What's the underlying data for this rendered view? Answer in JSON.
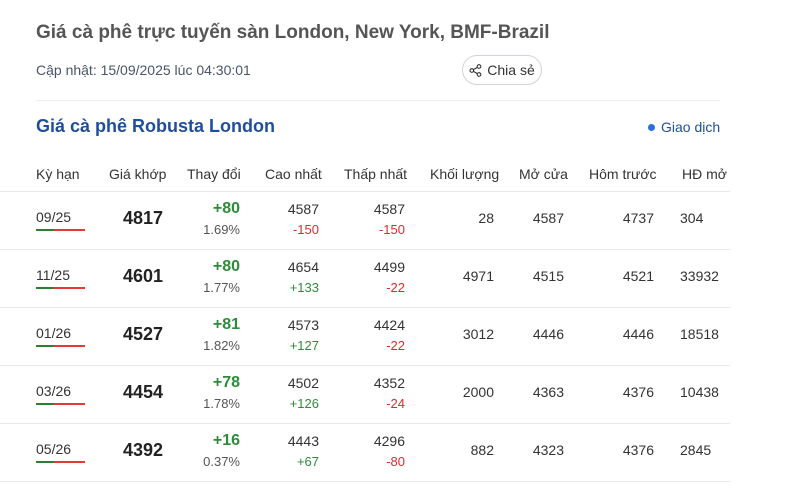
{
  "page": {
    "title": "Giá cà phê trực tuyến sàn London, New York, BMF-Brazil",
    "updated": "Cập nhật: 15/09/2025 lúc 04:30:01",
    "share_label": "Chia sẻ"
  },
  "section": {
    "title": "Giá cà phê Robusta London",
    "legend": "Giao dịch",
    "accent_color": "#1f4e9c"
  },
  "table": {
    "headers": [
      "Kỳ hạn",
      "Giá khớp",
      "Thay đổi",
      "Cao nhất",
      "Thấp nhất",
      "Khối lượng",
      "Mở cửa",
      "Hôm trước",
      "HĐ mở"
    ],
    "rows": [
      {
        "term": "09/25",
        "price": "4817",
        "change": "+80",
        "pct": "1.69%",
        "high": "4587",
        "high_diff": "-150",
        "low": "4587",
        "low_diff": "-150",
        "volume": "28",
        "open": "4587",
        "prev": "4737",
        "oi": "304"
      },
      {
        "term": "11/25",
        "price": "4601",
        "change": "+80",
        "pct": "1.77%",
        "high": "4654",
        "high_diff": "+133",
        "low": "4499",
        "low_diff": "-22",
        "volume": "4971",
        "open": "4515",
        "prev": "4521",
        "oi": "33932"
      },
      {
        "term": "01/26",
        "price": "4527",
        "change": "+81",
        "pct": "1.82%",
        "high": "4573",
        "high_diff": "+127",
        "low": "4424",
        "low_diff": "-22",
        "volume": "3012",
        "open": "4446",
        "prev": "4446",
        "oi": "18518"
      },
      {
        "term": "03/26",
        "price": "4454",
        "change": "+78",
        "pct": "1.78%",
        "high": "4502",
        "high_diff": "+126",
        "low": "4352",
        "low_diff": "-24",
        "volume": "2000",
        "open": "4363",
        "prev": "4376",
        "oi": "10438"
      },
      {
        "term": "05/26",
        "price": "4392",
        "change": "+16",
        "pct": "0.37%",
        "high": "4443",
        "high_diff": "+67",
        "low": "4296",
        "low_diff": "-80",
        "volume": "882",
        "open": "4323",
        "prev": "4376",
        "oi": "2845"
      }
    ]
  }
}
